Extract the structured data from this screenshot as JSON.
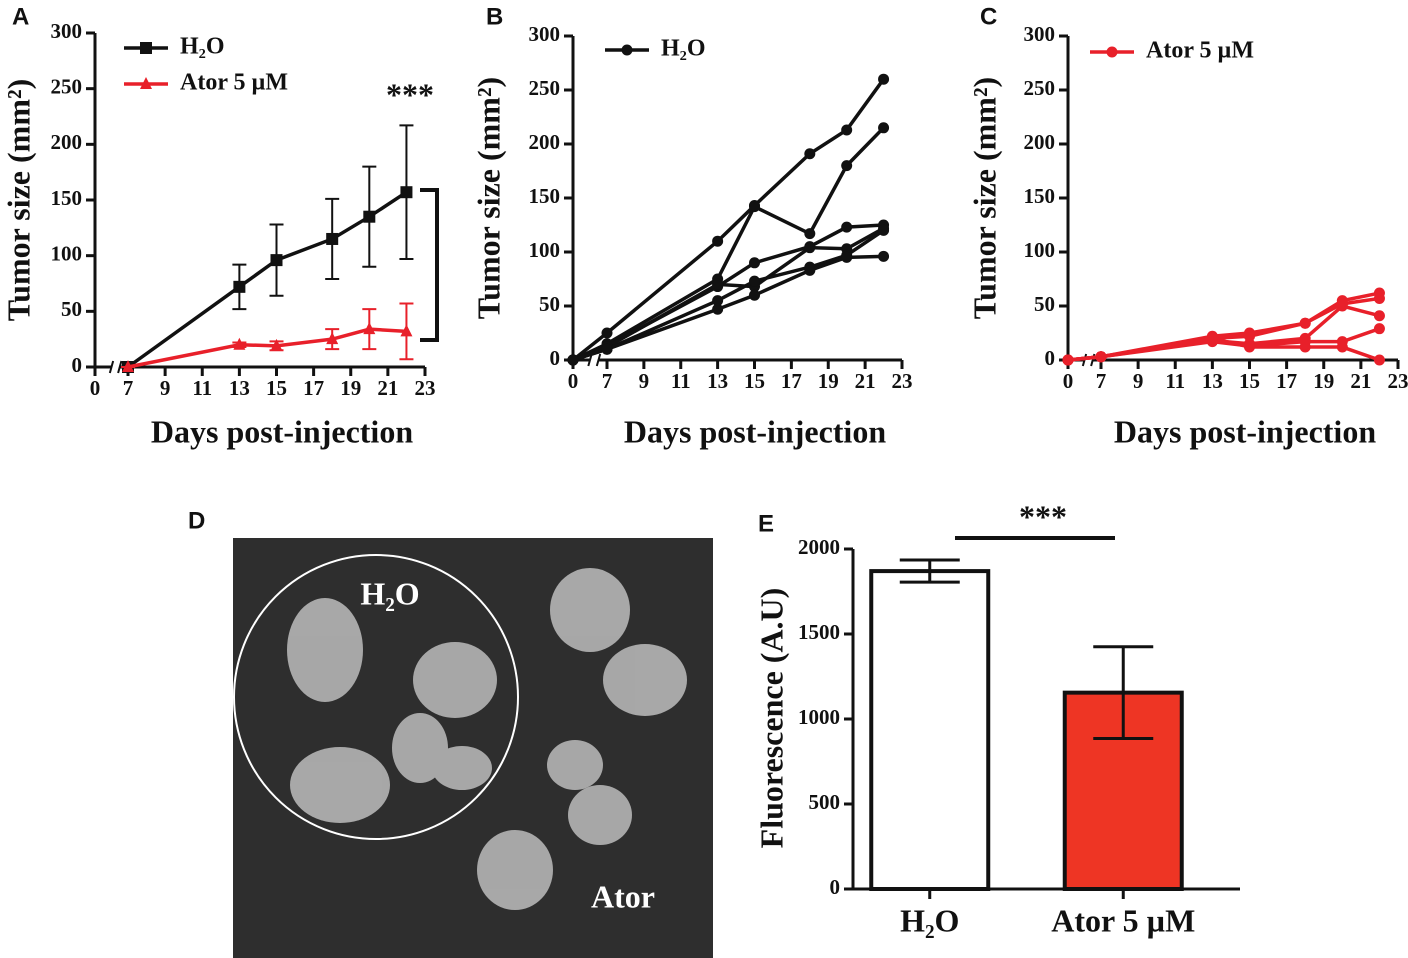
{
  "panel_labels": [
    "A",
    "B",
    "C",
    "D",
    "E"
  ],
  "image": {
    "labels": [
      "H₂O",
      "Ator"
    ]
  },
  "chart_data": [
    {
      "type": "line",
      "ylabel": "Tumor size (mm²)",
      "xlabel": "Days post-injection",
      "annotation": "***",
      "x": [
        7,
        13,
        15,
        18,
        20,
        22
      ],
      "xlim": [
        0,
        23
      ],
      "xbreak": 7,
      "xticks": [
        0,
        7,
        9,
        11,
        13,
        15,
        17,
        19,
        21,
        23
      ],
      "ylim": [
        0,
        300
      ],
      "yticks": [
        0,
        50,
        100,
        150,
        200,
        250,
        300
      ],
      "series": [
        {
          "name": "H₂O",
          "color": "#111111",
          "marker": "square",
          "values": [
            0,
            72,
            96,
            115,
            135,
            157
          ],
          "errors": [
            0,
            20,
            32,
            36,
            45,
            60
          ]
        },
        {
          "name": "Ator 5 µM",
          "color": "#e8202a",
          "marker": "triangle",
          "values": [
            0,
            20,
            19,
            25,
            34,
            32
          ],
          "errors": [
            0,
            2,
            4,
            9,
            18,
            25
          ]
        }
      ]
    },
    {
      "type": "line",
      "ylabel": "Tumor size (mm²)",
      "xlabel": "Days post-injection",
      "legend": "H₂O",
      "color": "#111111",
      "marker": "circle",
      "x": [
        0,
        7,
        13,
        15,
        18,
        20,
        22
      ],
      "xlim": [
        0,
        23
      ],
      "xbreak": 7,
      "xticks": [
        0,
        7,
        9,
        11,
        13,
        15,
        17,
        19,
        21,
        23
      ],
      "ylim": [
        0,
        300
      ],
      "yticks": [
        0,
        50,
        100,
        150,
        200,
        250,
        300
      ],
      "series": [
        {
          "values": [
            0,
            25,
            110,
            143,
            191,
            213,
            260
          ]
        },
        {
          "values": [
            0,
            15,
            75,
            142,
            117,
            180,
            215
          ]
        },
        {
          "values": [
            0,
            13,
            68,
            90,
            105,
            123,
            125
          ]
        },
        {
          "values": [
            0,
            12,
            70,
            68,
            104,
            103,
            122
          ]
        },
        {
          "values": [
            0,
            10,
            55,
            73,
            86,
            97,
            120
          ]
        },
        {
          "values": [
            0,
            10,
            47,
            60,
            83,
            95,
            96
          ]
        }
      ]
    },
    {
      "type": "line",
      "ylabel": "Tumor size (mm²)",
      "xlabel": "Days post-injection",
      "legend": "Ator 5 µM",
      "color": "#e8202a",
      "marker": "circle",
      "x": [
        0,
        7,
        13,
        15,
        18,
        20,
        22
      ],
      "xlim": [
        0,
        23
      ],
      "xbreak": 7,
      "xticks": [
        0,
        7,
        9,
        11,
        13,
        15,
        17,
        19,
        21,
        23
      ],
      "ylim": [
        0,
        300
      ],
      "yticks": [
        0,
        50,
        100,
        150,
        200,
        250,
        300
      ],
      "series": [
        {
          "values": [
            0,
            3,
            22,
            25,
            34,
            55,
            62
          ]
        },
        {
          "values": [
            0,
            3,
            20,
            22,
            34,
            52,
            57
          ]
        },
        {
          "values": [
            0,
            3,
            18,
            15,
            20,
            50,
            41
          ]
        },
        {
          "values": [
            0,
            3,
            17,
            13,
            17,
            17,
            29
          ]
        },
        {
          "values": [
            0,
            3,
            20,
            12,
            12,
            12,
            0
          ]
        }
      ]
    },
    {
      "type": "bar",
      "ylabel": "Fluorescence (A.U)",
      "annotation": "***",
      "categories": [
        "H₂O",
        "Ator 5 µM"
      ],
      "values": [
        1870,
        1155
      ],
      "errors": [
        65,
        270
      ],
      "colors": [
        "#ffffff",
        "#ee3524"
      ],
      "ylim": [
        0,
        2000
      ],
      "yticks": [
        0,
        500,
        1000,
        1500,
        2000
      ]
    }
  ]
}
